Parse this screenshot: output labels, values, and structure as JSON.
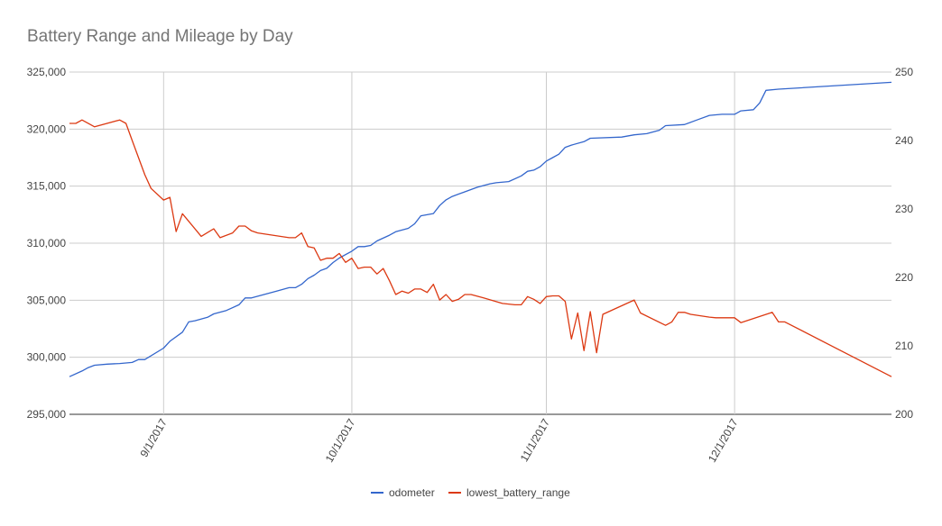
{
  "chart_data": {
    "type": "line",
    "title": "Battery Range and Mileage by Day",
    "x_range": [
      "2017-08-17",
      "2017-12-26"
    ],
    "x_ticks": [
      "9/1/2017",
      "10/1/2017",
      "11/1/2017",
      "12/1/2017"
    ],
    "x_tick_dates": [
      "2017-09-01",
      "2017-10-01",
      "2017-11-01",
      "2017-12-01"
    ],
    "y_left": {
      "min": 295000,
      "max": 325000,
      "ticks": [
        "295,000",
        "300,000",
        "305,000",
        "310,000",
        "315,000",
        "320,000",
        "325,000"
      ]
    },
    "y_right": {
      "min": 200,
      "max": 250,
      "ticks": [
        "200",
        "210",
        "220",
        "230",
        "240",
        "250"
      ]
    },
    "grid": true,
    "legend_position": "bottom",
    "series": [
      {
        "name": "odometer",
        "axis": "left",
        "color": "#3366cc",
        "points": [
          [
            "2017-08-17",
            298300
          ],
          [
            "2017-08-19",
            298800
          ],
          [
            "2017-08-20",
            299100
          ],
          [
            "2017-08-21",
            299300
          ],
          [
            "2017-08-23",
            299400
          ],
          [
            "2017-08-25",
            299450
          ],
          [
            "2017-08-26",
            299500
          ],
          [
            "2017-08-27",
            299550
          ],
          [
            "2017-08-28",
            299800
          ],
          [
            "2017-08-29",
            299800
          ],
          [
            "2017-09-01",
            300800
          ],
          [
            "2017-09-02",
            301400
          ],
          [
            "2017-09-04",
            302200
          ],
          [
            "2017-09-05",
            303100
          ],
          [
            "2017-09-06",
            303200
          ],
          [
            "2017-09-08",
            303500
          ],
          [
            "2017-09-09",
            303800
          ],
          [
            "2017-09-11",
            304100
          ],
          [
            "2017-09-13",
            304600
          ],
          [
            "2017-09-14",
            305200
          ],
          [
            "2017-09-15",
            305200
          ],
          [
            "2017-09-17",
            305500
          ],
          [
            "2017-09-19",
            305800
          ],
          [
            "2017-09-21",
            306100
          ],
          [
            "2017-09-22",
            306100
          ],
          [
            "2017-09-23",
            306400
          ],
          [
            "2017-09-24",
            306900
          ],
          [
            "2017-09-25",
            307200
          ],
          [
            "2017-09-26",
            307600
          ],
          [
            "2017-09-27",
            307800
          ],
          [
            "2017-09-28",
            308300
          ],
          [
            "2017-09-29",
            308700
          ],
          [
            "2017-10-01",
            309300
          ],
          [
            "2017-10-02",
            309700
          ],
          [
            "2017-10-03",
            309700
          ],
          [
            "2017-10-04",
            309800
          ],
          [
            "2017-10-05",
            310200
          ],
          [
            "2017-10-07",
            310700
          ],
          [
            "2017-10-08",
            311000
          ],
          [
            "2017-10-10",
            311300
          ],
          [
            "2017-10-11",
            311700
          ],
          [
            "2017-10-12",
            312400
          ],
          [
            "2017-10-14",
            312600
          ],
          [
            "2017-10-15",
            313300
          ],
          [
            "2017-10-16",
            313800
          ],
          [
            "2017-10-17",
            314100
          ],
          [
            "2017-10-19",
            314500
          ],
          [
            "2017-10-21",
            314900
          ],
          [
            "2017-10-23",
            315200
          ],
          [
            "2017-10-24",
            315300
          ],
          [
            "2017-10-26",
            315400
          ],
          [
            "2017-10-28",
            315900
          ],
          [
            "2017-10-29",
            316300
          ],
          [
            "2017-10-30",
            316400
          ],
          [
            "2017-10-31",
            316700
          ],
          [
            "2017-11-01",
            317200
          ],
          [
            "2017-11-02",
            317500
          ],
          [
            "2017-11-03",
            317800
          ],
          [
            "2017-11-04",
            318400
          ],
          [
            "2017-11-05",
            318600
          ],
          [
            "2017-11-07",
            318900
          ],
          [
            "2017-11-08",
            319200
          ],
          [
            "2017-11-13",
            319300
          ],
          [
            "2017-11-15",
            319500
          ],
          [
            "2017-11-17",
            319600
          ],
          [
            "2017-11-19",
            319900
          ],
          [
            "2017-11-20",
            320300
          ],
          [
            "2017-11-23",
            320400
          ],
          [
            "2017-11-25",
            320800
          ],
          [
            "2017-11-27",
            321200
          ],
          [
            "2017-11-29",
            321300
          ],
          [
            "2017-12-01",
            321300
          ],
          [
            "2017-12-02",
            321600
          ],
          [
            "2017-12-04",
            321700
          ],
          [
            "2017-12-05",
            322300
          ],
          [
            "2017-12-06",
            323400
          ],
          [
            "2017-12-08",
            323500
          ],
          [
            "2017-12-26",
            324100
          ]
        ]
      },
      {
        "name": "lowest_battery_range",
        "axis": "right",
        "color": "#dc3912",
        "points": [
          [
            "2017-08-17",
            242.5
          ],
          [
            "2017-08-18",
            242.5
          ],
          [
            "2017-08-19",
            243
          ],
          [
            "2017-08-21",
            242
          ],
          [
            "2017-08-25",
            243
          ],
          [
            "2017-08-26",
            242.5
          ],
          [
            "2017-08-27",
            240
          ],
          [
            "2017-08-29",
            235
          ],
          [
            "2017-08-30",
            233
          ],
          [
            "2017-09-01",
            231.3
          ],
          [
            "2017-09-02",
            231.7
          ],
          [
            "2017-09-03",
            226.7
          ],
          [
            "2017-09-04",
            229.3
          ],
          [
            "2017-09-07",
            226
          ],
          [
            "2017-09-09",
            227.1
          ],
          [
            "2017-09-10",
            225.8
          ],
          [
            "2017-09-12",
            226.5
          ],
          [
            "2017-09-13",
            227.5
          ],
          [
            "2017-09-14",
            227.5
          ],
          [
            "2017-09-15",
            226.8
          ],
          [
            "2017-09-16",
            226.5
          ],
          [
            "2017-09-21",
            225.8
          ],
          [
            "2017-09-22",
            225.8
          ],
          [
            "2017-09-23",
            226.5
          ],
          [
            "2017-09-24",
            224.5
          ],
          [
            "2017-09-25",
            224.3
          ],
          [
            "2017-09-26",
            222.5
          ],
          [
            "2017-09-27",
            222.8
          ],
          [
            "2017-09-28",
            222.8
          ],
          [
            "2017-09-29",
            223.5
          ],
          [
            "2017-09-30",
            222.2
          ],
          [
            "2017-10-01",
            222.8
          ],
          [
            "2017-10-02",
            221.3
          ],
          [
            "2017-10-03",
            221.5
          ],
          [
            "2017-10-04",
            221.5
          ],
          [
            "2017-10-05",
            220.5
          ],
          [
            "2017-10-06",
            221.3
          ],
          [
            "2017-10-07",
            219.5
          ],
          [
            "2017-10-08",
            217.5
          ],
          [
            "2017-10-09",
            218
          ],
          [
            "2017-10-10",
            217.7
          ],
          [
            "2017-10-11",
            218.3
          ],
          [
            "2017-10-12",
            218.3
          ],
          [
            "2017-10-13",
            217.8
          ],
          [
            "2017-10-14",
            219
          ],
          [
            "2017-10-15",
            216.7
          ],
          [
            "2017-10-16",
            217.5
          ],
          [
            "2017-10-17",
            216.5
          ],
          [
            "2017-10-18",
            216.8
          ],
          [
            "2017-10-19",
            217.5
          ],
          [
            "2017-10-20",
            217.5
          ],
          [
            "2017-10-22",
            217
          ],
          [
            "2017-10-25",
            216.2
          ],
          [
            "2017-10-27",
            216
          ],
          [
            "2017-10-28",
            216
          ],
          [
            "2017-10-29",
            217.2
          ],
          [
            "2017-10-30",
            216.8
          ],
          [
            "2017-10-31",
            216.2
          ],
          [
            "2017-11-01",
            217.2
          ],
          [
            "2017-11-02",
            217.3
          ],
          [
            "2017-11-03",
            217.3
          ],
          [
            "2017-11-04",
            216.5
          ],
          [
            "2017-11-05",
            211
          ],
          [
            "2017-11-06",
            214.8
          ],
          [
            "2017-11-07",
            209.3
          ],
          [
            "2017-11-08",
            215
          ],
          [
            "2017-11-09",
            209
          ],
          [
            "2017-11-10",
            214.6
          ],
          [
            "2017-11-15",
            216.7
          ],
          [
            "2017-11-16",
            214.8
          ],
          [
            "2017-11-20",
            213
          ],
          [
            "2017-11-21",
            213.5
          ],
          [
            "2017-11-22",
            214.9
          ],
          [
            "2017-11-23",
            214.9
          ],
          [
            "2017-11-24",
            214.6
          ],
          [
            "2017-11-27",
            214.2
          ],
          [
            "2017-11-28",
            214.1
          ],
          [
            "2017-12-01",
            214.1
          ],
          [
            "2017-12-02",
            213.4
          ],
          [
            "2017-12-07",
            214.9
          ],
          [
            "2017-12-08",
            213.5
          ],
          [
            "2017-12-09",
            213.5
          ],
          [
            "2017-12-26",
            205.5
          ]
        ]
      }
    ]
  }
}
